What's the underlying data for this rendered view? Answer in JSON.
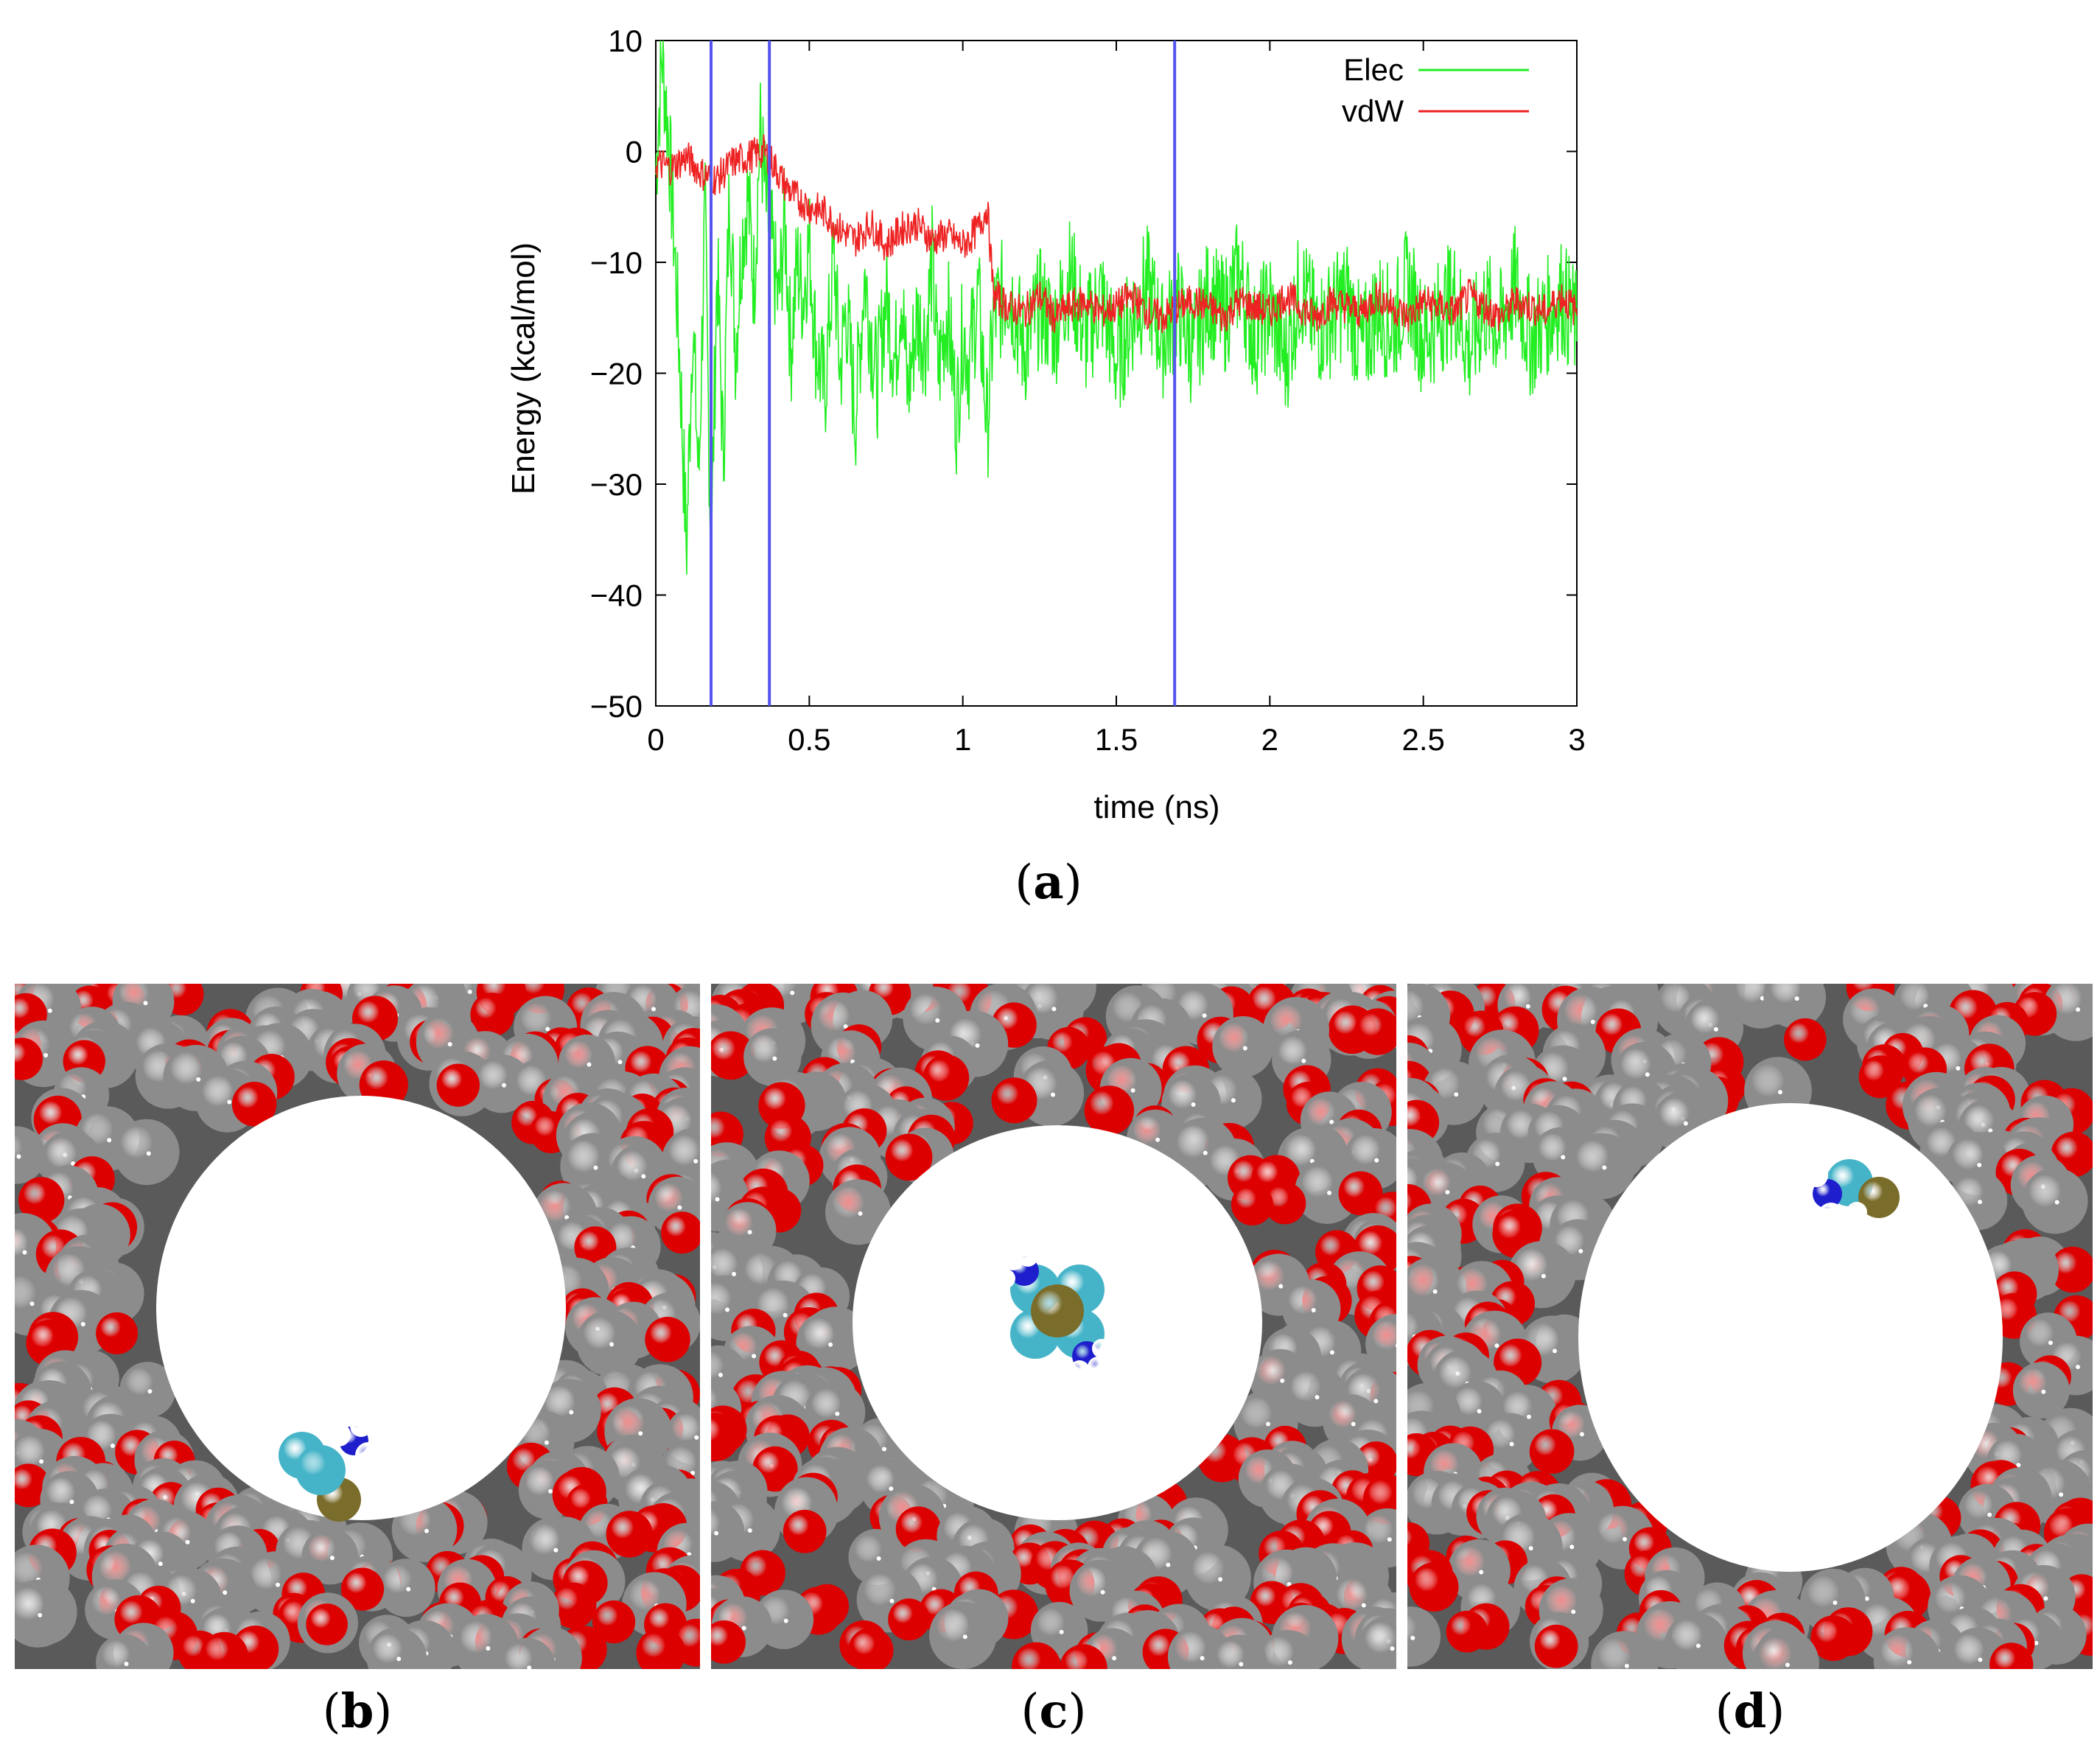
{
  "figure": {
    "caption_a": "a",
    "caption_b": "b",
    "caption_c": "c",
    "caption_d": "d"
  },
  "chart_data": {
    "type": "line",
    "xlabel": "time (ns)",
    "ylabel": "Energy (kcal/mol)",
    "xlim": [
      0,
      3
    ],
    "ylim": [
      -50,
      10
    ],
    "xticks": [
      0,
      0.5,
      1,
      1.5,
      2,
      2.5,
      3
    ],
    "xtick_labels": [
      "0",
      "0.5",
      "1",
      "1.5",
      "2",
      "2.5",
      "3"
    ],
    "yticks": [
      10,
      0,
      -10,
      -20,
      -30,
      -40,
      -50
    ],
    "ytick_labels": [
      "10",
      "0",
      "−10",
      "−20",
      "−30",
      "−40",
      "−50"
    ],
    "legend_position": "top-right",
    "vertical_markers": [
      0.18,
      0.37,
      1.69
    ],
    "marker_color": "#5555ee",
    "series": [
      {
        "name": "Elec",
        "color": "#22ee22",
        "x": [
          0,
          0.02,
          0.04,
          0.06,
          0.08,
          0.1,
          0.12,
          0.14,
          0.16,
          0.18,
          0.2,
          0.22,
          0.24,
          0.26,
          0.28,
          0.3,
          0.32,
          0.34,
          0.36,
          0.38,
          0.4,
          0.42,
          0.44,
          0.46,
          0.48,
          0.5,
          0.52,
          0.55,
          0.58,
          0.6,
          0.62,
          0.65,
          0.68,
          0.7,
          0.72,
          0.75,
          0.78,
          0.8,
          0.82,
          0.85,
          0.88,
          0.9,
          0.92,
          0.95,
          0.98,
          1.0,
          1.02,
          1.05,
          1.08,
          1.1,
          1.15,
          1.2,
          1.25,
          1.3,
          1.35,
          1.4,
          1.45,
          1.5,
          1.55,
          1.6,
          1.65,
          1.7,
          1.75,
          1.8,
          1.85,
          1.9,
          1.95,
          2.0,
          2.05,
          2.1,
          2.15,
          2.2,
          2.25,
          2.3,
          2.35,
          2.4,
          2.45,
          2.5,
          2.55,
          2.6,
          2.65,
          2.7,
          2.75,
          2.8,
          2.85,
          2.9,
          2.95,
          3.0
        ],
        "values": [
          -2,
          9,
          2,
          -8,
          -20,
          -36,
          -15,
          -30,
          -5,
          -37,
          -10,
          -28,
          -3,
          -18,
          -8,
          -4,
          -12,
          2,
          -5,
          -9,
          -14,
          -6,
          -18,
          -10,
          -13,
          -8,
          -17,
          -22,
          -9,
          -20,
          -14,
          -24,
          -11,
          -16,
          -21,
          -13,
          -19,
          -12,
          -22,
          -15,
          -17,
          -10,
          -20,
          -14,
          -24,
          -16,
          -19,
          -13,
          -25,
          -15,
          -12,
          -18,
          -14,
          -16,
          -11,
          -17,
          -13,
          -19,
          -15,
          -12,
          -17,
          -14,
          -18,
          -13,
          -15,
          -11,
          -17,
          -14,
          -19,
          -12,
          -16,
          -15,
          -13,
          -18,
          -14,
          -16,
          -12,
          -17,
          -15,
          -13,
          -18,
          -14,
          -16,
          -12,
          -17,
          -15,
          -13,
          -16
        ]
      },
      {
        "name": "vdW",
        "color": "#ee2222",
        "x": [
          0,
          0.05,
          0.1,
          0.15,
          0.2,
          0.25,
          0.3,
          0.35,
          0.38,
          0.42,
          0.45,
          0.5,
          0.55,
          0.6,
          0.65,
          0.7,
          0.75,
          0.8,
          0.85,
          0.9,
          0.95,
          1.0,
          1.05,
          1.08,
          1.1,
          1.15,
          1.2,
          1.25,
          1.3,
          1.35,
          1.4,
          1.45,
          1.5,
          1.55,
          1.6,
          1.65,
          1.7,
          1.75,
          1.8,
          1.85,
          1.9,
          1.95,
          2.0,
          2.05,
          2.1,
          2.15,
          2.2,
          2.25,
          2.3,
          2.35,
          2.4,
          2.45,
          2.5,
          2.55,
          2.6,
          2.65,
          2.7,
          2.75,
          2.8,
          2.85,
          2.9,
          2.95,
          3.0
        ],
        "values": [
          -1,
          -1.5,
          -0.5,
          -2,
          -2.5,
          -1,
          -0.5,
          0,
          -1,
          -3,
          -4,
          -5,
          -5.5,
          -7,
          -8,
          -6.5,
          -8.5,
          -7,
          -6.5,
          -8,
          -7.5,
          -8.5,
          -7,
          -5,
          -13,
          -14,
          -14.5,
          -13,
          -15,
          -14,
          -13.5,
          -14.5,
          -14,
          -13,
          -14.5,
          -15,
          -14,
          -13.5,
          -14,
          -15,
          -13.5,
          -14,
          -14.5,
          -13,
          -14,
          -15,
          -13.5,
          -14,
          -14.5,
          -13,
          -14,
          -15,
          -13.5,
          -14,
          -14.5,
          -13,
          -14,
          -15,
          -13.5,
          -14,
          -14.5,
          -13,
          -14.5
        ]
      }
    ]
  },
  "snapshots": {
    "atom_colors": {
      "oxygen": "#dd0000",
      "carbon": "#8c8c8c",
      "hydrogen": "#ffffff",
      "nitrogen": "#1e1ecc",
      "fluorine": "#46b4c8",
      "metal": "#7a6c2a"
    }
  }
}
